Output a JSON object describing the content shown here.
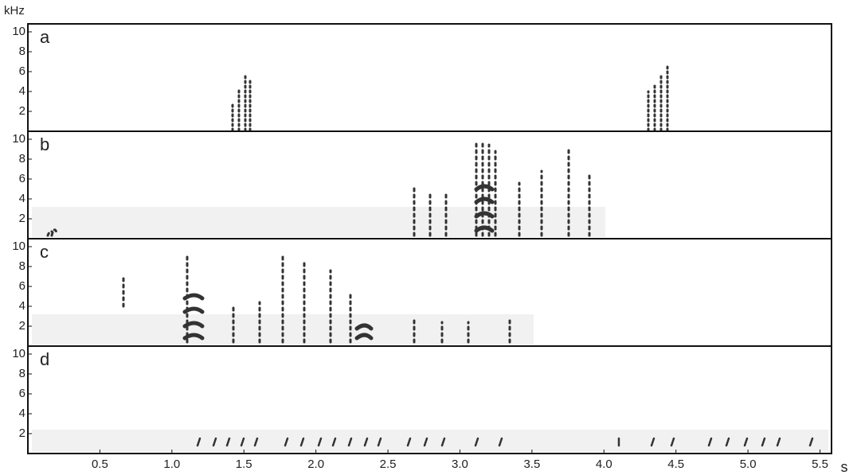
{
  "chart_data": [
    {
      "type": "spectrogram",
      "panel_label": "a",
      "y_label": "kHz",
      "xlim": [
        0,
        5.58
      ],
      "ylim": [
        0,
        10.8
      ],
      "yticks": [
        2,
        4,
        6,
        8,
        10
      ]
    },
    {
      "type": "spectrogram",
      "panel_label": "b",
      "xlim": [
        0,
        5.58
      ],
      "ylim": [
        0,
        10.8
      ],
      "yticks": [
        2,
        4,
        6,
        8,
        10
      ]
    },
    {
      "type": "spectrogram",
      "panel_label": "c",
      "xlim": [
        0,
        5.58
      ],
      "ylim": [
        0,
        10.8
      ],
      "yticks": [
        2,
        4,
        6,
        8,
        10
      ]
    },
    {
      "type": "spectrogram",
      "panel_label": "d",
      "x_label": "s",
      "xlim": [
        0,
        5.58
      ],
      "ylim": [
        0,
        10.8
      ],
      "yticks": [
        2,
        4,
        6,
        8,
        10
      ],
      "xticks": [
        0.5,
        {
          "value": 1,
          "label": "1.0"
        },
        1.5,
        {
          "value": 2,
          "label": "2.0"
        },
        2.5,
        {
          "value": 3,
          "label": "3.0"
        },
        3.5,
        {
          "value": 4,
          "label": "4.0"
        },
        4.5,
        {
          "value": 5,
          "label": "5.0"
        },
        5.5
      ]
    }
  ]
}
